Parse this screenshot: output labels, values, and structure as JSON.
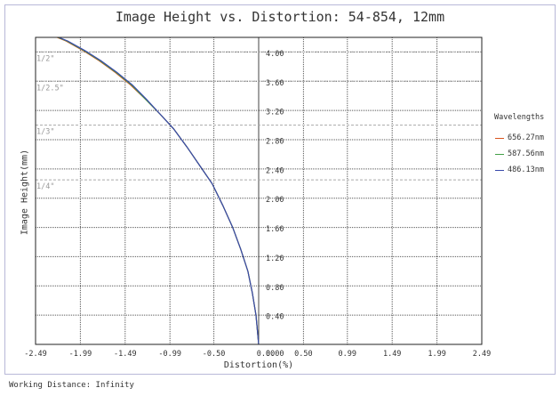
{
  "chart_data": {
    "type": "line",
    "title": "Image Height vs. Distortion: 54-854, 12mm",
    "xlabel": "Distortion(%)",
    "ylabel": "Image Height(mm)",
    "xlim": [
      -2.49,
      2.49
    ],
    "ylim": [
      0,
      4.2
    ],
    "x_ticks": [
      "-2.49",
      "-1.99",
      "-1.49",
      "-0.99",
      "-0.50",
      "0.00",
      "0.50",
      "0.99",
      "1.49",
      "1.99",
      "2.49"
    ],
    "x_tick_values": [
      -2.49,
      -1.99,
      -1.49,
      -0.99,
      -0.5,
      0.0,
      0.5,
      0.99,
      1.49,
      1.99,
      2.49
    ],
    "y_ticks": [
      "0.40",
      "0.80",
      "1.20",
      "1.60",
      "2.00",
      "2.40",
      "2.80",
      "3.20",
      "3.60",
      "4.00"
    ],
    "y_tick_values": [
      0.4,
      0.8,
      1.2,
      1.6,
      2.0,
      2.4,
      2.8,
      3.2,
      3.6,
      4.0
    ],
    "grid": true,
    "legend_title": "Wavelengths",
    "legend_position": "right",
    "sensor_formats": [
      {
        "label": "1/2\"",
        "y": 4.0
      },
      {
        "label": "1/2.5\"",
        "y": 3.6
      },
      {
        "label": "1/3\"",
        "y": 3.0
      },
      {
        "label": "1/4\"",
        "y": 2.25
      }
    ],
    "series": [
      {
        "name": "656.27nm",
        "color": "#d9541e",
        "x": [
          0,
          -0.03,
          -0.07,
          -0.12,
          -0.2,
          -0.29,
          -0.4,
          -0.52,
          -0.66,
          -0.8,
          -0.95,
          -1.1,
          -1.26,
          -1.43,
          -1.6,
          -1.78,
          -1.96,
          -2.15,
          -2.25
        ],
        "y": [
          0,
          0.4,
          0.7,
          1.0,
          1.3,
          1.6,
          1.9,
          2.2,
          2.45,
          2.7,
          2.95,
          3.15,
          3.35,
          3.55,
          3.72,
          3.88,
          4.02,
          4.15,
          4.2
        ]
      },
      {
        "name": "587.56nm",
        "color": "#43a047",
        "x": [
          0,
          -0.03,
          -0.07,
          -0.12,
          -0.2,
          -0.29,
          -0.4,
          -0.52,
          -0.66,
          -0.8,
          -0.95,
          -1.1,
          -1.26,
          -1.42,
          -1.59,
          -1.77,
          -1.95,
          -2.14,
          -2.24
        ],
        "y": [
          0,
          0.4,
          0.7,
          1.0,
          1.3,
          1.6,
          1.9,
          2.2,
          2.45,
          2.7,
          2.95,
          3.15,
          3.35,
          3.55,
          3.72,
          3.88,
          4.02,
          4.15,
          4.2
        ]
      },
      {
        "name": "486.13nm",
        "color": "#3949ab",
        "x": [
          0,
          -0.03,
          -0.07,
          -0.12,
          -0.2,
          -0.29,
          -0.4,
          -0.52,
          -0.66,
          -0.8,
          -0.95,
          -1.1,
          -1.25,
          -1.41,
          -1.58,
          -1.76,
          -1.94,
          -2.13,
          -2.23
        ],
        "y": [
          0,
          0.4,
          0.7,
          1.0,
          1.3,
          1.6,
          1.9,
          2.2,
          2.45,
          2.7,
          2.95,
          3.15,
          3.35,
          3.55,
          3.72,
          3.88,
          4.02,
          4.15,
          4.2
        ]
      }
    ]
  },
  "footer": {
    "working_distance": "Working Distance: Infinity"
  }
}
